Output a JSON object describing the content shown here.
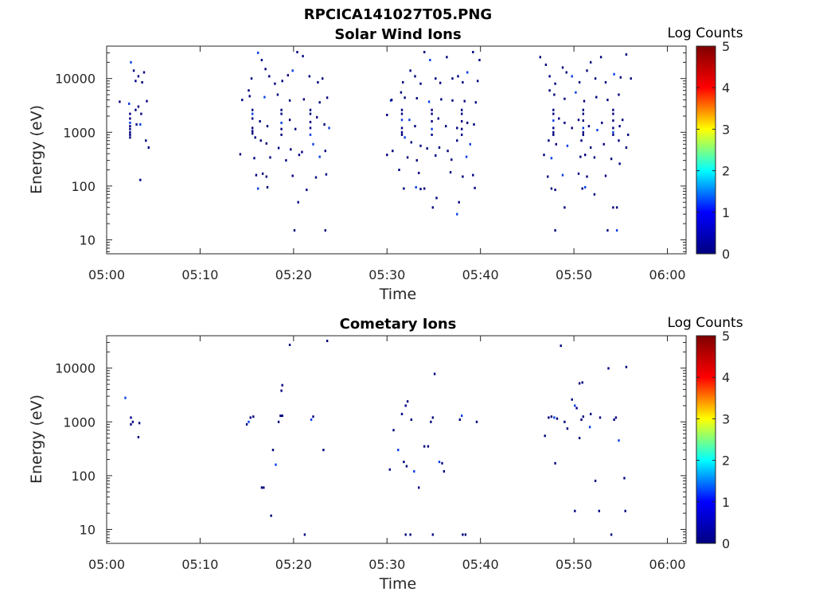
{
  "header": {
    "filename": "RPCICA141027T05.PNG"
  },
  "colors": {
    "mark": "#00007f",
    "mark_bright": "#0b3fe6",
    "axis": "#262626"
  },
  "colorbar": {
    "label": "Log Counts",
    "range": [
      0,
      5
    ],
    "ticks": [
      "0",
      "1",
      "2",
      "3",
      "4",
      "5"
    ],
    "colormap": "jet",
    "stops": [
      "#00007f",
      "#0000ff",
      "#00ffff",
      "#ffff00",
      "#ff0000",
      "#7f0000"
    ]
  },
  "chart_data": [
    {
      "type": "heatmap",
      "title": "Solar Wind Ions",
      "xlabel": "Time",
      "ylabel": "Energy (eV)",
      "x_unit": "minutes after 05:00",
      "xlim": [
        0,
        62
      ],
      "xticks": [
        "05:00",
        "05:10",
        "05:20",
        "05:30",
        "05:40",
        "05:50",
        "06:00"
      ],
      "y_scale": "log",
      "ylim": [
        5.5,
        40000
      ],
      "yticks": [
        "10",
        "100",
        "1000",
        "10000"
      ],
      "grid": false,
      "color_range": [
        0,
        5
      ],
      "points": [
        [
          2.6,
          20000
        ],
        [
          2.9,
          14000
        ],
        [
          3.1,
          9000
        ],
        [
          3.4,
          11000
        ],
        [
          3.8,
          8500
        ],
        [
          4.0,
          13000
        ],
        [
          1.4,
          3700
        ],
        [
          2.4,
          3400
        ],
        [
          3.1,
          2600
        ],
        [
          3.4,
          3000
        ],
        [
          3.7,
          2200
        ],
        [
          4.3,
          3800
        ],
        [
          2.5,
          2200
        ],
        [
          2.5,
          1800
        ],
        [
          2.5,
          1500
        ],
        [
          2.5,
          1300
        ],
        [
          2.5,
          1150
        ],
        [
          2.5,
          1000
        ],
        [
          2.5,
          900
        ],
        [
          2.5,
          800
        ],
        [
          3.2,
          1400
        ],
        [
          3.6,
          1400
        ],
        [
          4.2,
          700
        ],
        [
          4.5,
          520
        ],
        [
          3.6,
          130
        ],
        [
          14.5,
          4000
        ],
        [
          15.2,
          6000
        ],
        [
          15.5,
          10000
        ],
        [
          16.2,
          30000
        ],
        [
          16.6,
          22000
        ],
        [
          17.0,
          15000
        ],
        [
          17.4,
          11000
        ],
        [
          18.0,
          8000
        ],
        [
          18.8,
          9000
        ],
        [
          19.4,
          11500
        ],
        [
          19.9,
          14000
        ],
        [
          20.4,
          31000
        ],
        [
          21.0,
          26000
        ],
        [
          21.7,
          11000
        ],
        [
          22.6,
          8500
        ],
        [
          23.1,
          10000
        ],
        [
          15.3,
          4700
        ],
        [
          16.9,
          4500
        ],
        [
          18.3,
          5000
        ],
        [
          19.6,
          3900
        ],
        [
          21.1,
          4100
        ],
        [
          22.8,
          3600
        ],
        [
          23.6,
          4400
        ],
        [
          15.6,
          2600
        ],
        [
          15.6,
          2200
        ],
        [
          15.6,
          1800
        ],
        [
          15.6,
          1200
        ],
        [
          15.6,
          1050
        ],
        [
          15.6,
          950
        ],
        [
          18.7,
          2600
        ],
        [
          18.7,
          2200
        ],
        [
          18.7,
          1500
        ],
        [
          18.7,
          1150
        ],
        [
          18.7,
          900
        ],
        [
          21.8,
          2600
        ],
        [
          21.8,
          2200
        ],
        [
          21.8,
          1550
        ],
        [
          21.8,
          1200
        ],
        [
          21.8,
          900
        ],
        [
          16.4,
          1600
        ],
        [
          17.2,
          1300
        ],
        [
          19.6,
          1700
        ],
        [
          20.2,
          1150
        ],
        [
          22.5,
          1900
        ],
        [
          23.3,
          1400
        ],
        [
          23.8,
          1200
        ],
        [
          15.9,
          800
        ],
        [
          16.5,
          700
        ],
        [
          17.1,
          620
        ],
        [
          18.4,
          510
        ],
        [
          19.7,
          480
        ],
        [
          20.9,
          430
        ],
        [
          22.1,
          600
        ],
        [
          23.4,
          450
        ],
        [
          14.3,
          390
        ],
        [
          15.8,
          330
        ],
        [
          17.5,
          340
        ],
        [
          19.2,
          300
        ],
        [
          20.6,
          380
        ],
        [
          22.8,
          350
        ],
        [
          16.0,
          160
        ],
        [
          16.7,
          170
        ],
        [
          17.1,
          150
        ],
        [
          19.9,
          155
        ],
        [
          22.4,
          145
        ],
        [
          23.5,
          165
        ],
        [
          16.2,
          90
        ],
        [
          17.2,
          95
        ],
        [
          21.4,
          85
        ],
        [
          20.5,
          50
        ],
        [
          20.1,
          15
        ],
        [
          23.4,
          15
        ],
        [
          30.0,
          2100
        ],
        [
          30.4,
          3900
        ],
        [
          31.5,
          5500
        ],
        [
          31.7,
          8500
        ],
        [
          32.5,
          14000
        ],
        [
          33.0,
          11000
        ],
        [
          33.6,
          8000
        ],
        [
          34.0,
          31000
        ],
        [
          34.6,
          22000
        ],
        [
          35.2,
          10000
        ],
        [
          35.7,
          8300
        ],
        [
          36.4,
          25000
        ],
        [
          37.0,
          10000
        ],
        [
          37.6,
          11000
        ],
        [
          38.1,
          8500
        ],
        [
          38.6,
          13000
        ],
        [
          39.2,
          31000
        ],
        [
          39.7,
          9000
        ],
        [
          39.9,
          22000
        ],
        [
          30.5,
          4000
        ],
        [
          31.9,
          4400
        ],
        [
          33.2,
          4300
        ],
        [
          34.5,
          3700
        ],
        [
          35.8,
          4100
        ],
        [
          37.0,
          3900
        ],
        [
          38.3,
          3800
        ],
        [
          39.5,
          3600
        ],
        [
          31.6,
          2600
        ],
        [
          31.6,
          2200
        ],
        [
          31.6,
          1700
        ],
        [
          31.6,
          1200
        ],
        [
          31.6,
          1000
        ],
        [
          31.6,
          900
        ],
        [
          34.8,
          2600
        ],
        [
          34.8,
          2200
        ],
        [
          34.8,
          1600
        ],
        [
          34.8,
          1150
        ],
        [
          34.8,
          900
        ],
        [
          38.0,
          2600
        ],
        [
          38.0,
          2200
        ],
        [
          38.0,
          1600
        ],
        [
          38.0,
          1150
        ],
        [
          38.0,
          900
        ],
        [
          32.4,
          1700
        ],
        [
          33.0,
          1300
        ],
        [
          35.5,
          1800
        ],
        [
          36.3,
          1300
        ],
        [
          37.5,
          1200
        ],
        [
          38.6,
          1500
        ],
        [
          39.3,
          1400
        ],
        [
          31.9,
          800
        ],
        [
          32.6,
          650
        ],
        [
          33.6,
          560
        ],
        [
          34.3,
          500
        ],
        [
          35.6,
          520
        ],
        [
          36.5,
          450
        ],
        [
          37.5,
          700
        ],
        [
          38.9,
          600
        ],
        [
          30.0,
          380
        ],
        [
          30.6,
          450
        ],
        [
          32.2,
          340
        ],
        [
          33.2,
          300
        ],
        [
          35.2,
          370
        ],
        [
          36.9,
          310
        ],
        [
          38.5,
          350
        ],
        [
          31.3,
          200
        ],
        [
          33.4,
          175
        ],
        [
          36.8,
          180
        ],
        [
          38.1,
          150
        ],
        [
          39.2,
          160
        ],
        [
          31.8,
          90
        ],
        [
          33.1,
          95
        ],
        [
          33.6,
          88
        ],
        [
          39.4,
          92
        ],
        [
          34.0,
          90
        ],
        [
          35.3,
          60
        ],
        [
          34.9,
          40
        ],
        [
          37.7,
          50
        ],
        [
          37.5,
          30
        ],
        [
          46.4,
          25000
        ],
        [
          47.0,
          18000
        ],
        [
          47.4,
          11000
        ],
        [
          48.0,
          8000
        ],
        [
          48.8,
          16000
        ],
        [
          49.2,
          13000
        ],
        [
          49.8,
          11000
        ],
        [
          50.6,
          8500
        ],
        [
          51.4,
          14000
        ],
        [
          51.8,
          20000
        ],
        [
          52.3,
          10000
        ],
        [
          52.9,
          25000
        ],
        [
          53.4,
          8500
        ],
        [
          54.3,
          12000
        ],
        [
          55.0,
          10500
        ],
        [
          55.6,
          28000
        ],
        [
          56.1,
          10000
        ],
        [
          47.4,
          6000
        ],
        [
          47.9,
          5000
        ],
        [
          49.0,
          4200
        ],
        [
          50.2,
          5500
        ],
        [
          51.1,
          3800
        ],
        [
          52.4,
          4500
        ],
        [
          53.6,
          4000
        ],
        [
          54.8,
          5000
        ],
        [
          47.8,
          2600
        ],
        [
          47.8,
          2200
        ],
        [
          47.8,
          1650
        ],
        [
          47.8,
          1200
        ],
        [
          47.8,
          1000
        ],
        [
          47.8,
          900
        ],
        [
          51.0,
          2600
        ],
        [
          51.0,
          2200
        ],
        [
          51.0,
          1650
        ],
        [
          51.0,
          1200
        ],
        [
          51.0,
          1000
        ],
        [
          51.0,
          900
        ],
        [
          54.2,
          2600
        ],
        [
          54.2,
          2200
        ],
        [
          54.2,
          1650
        ],
        [
          54.2,
          1200
        ],
        [
          54.2,
          1000
        ],
        [
          54.2,
          900
        ],
        [
          48.4,
          1800
        ],
        [
          49.0,
          1500
        ],
        [
          49.8,
          1200
        ],
        [
          50.5,
          1700
        ],
        [
          51.6,
          1300
        ],
        [
          52.5,
          1100
        ],
        [
          53.0,
          1500
        ],
        [
          54.9,
          1300
        ],
        [
          55.2,
          1700
        ],
        [
          55.8,
          900
        ],
        [
          47.3,
          700
        ],
        [
          48.1,
          600
        ],
        [
          49.3,
          560
        ],
        [
          50.8,
          700
        ],
        [
          51.8,
          520
        ],
        [
          53.2,
          600
        ],
        [
          54.8,
          700
        ],
        [
          55.6,
          520
        ],
        [
          46.8,
          380
        ],
        [
          47.6,
          330
        ],
        [
          50.7,
          350
        ],
        [
          51.2,
          380
        ],
        [
          52.2,
          340
        ],
        [
          54.0,
          320
        ],
        [
          54.9,
          260
        ],
        [
          47.2,
          150
        ],
        [
          48.8,
          160
        ],
        [
          50.5,
          170
        ],
        [
          51.4,
          150
        ],
        [
          53.4,
          155
        ],
        [
          47.6,
          90
        ],
        [
          48.0,
          85
        ],
        [
          50.9,
          90
        ],
        [
          51.2,
          95
        ],
        [
          52.2,
          70
        ],
        [
          49.0,
          40
        ],
        [
          54.2,
          40
        ],
        [
          54.6,
          40
        ],
        [
          48.0,
          15
        ],
        [
          53.6,
          15
        ],
        [
          54.6,
          15
        ]
      ]
    },
    {
      "type": "heatmap",
      "title": "Cometary Ions",
      "xlabel": "Time",
      "ylabel": "Energy (eV)",
      "x_unit": "minutes after 05:00",
      "xlim": [
        0,
        62
      ],
      "xticks": [
        "05:00",
        "05:10",
        "05:20",
        "05:30",
        "05:40",
        "05:50",
        "06:00"
      ],
      "y_scale": "log",
      "ylim": [
        5.5,
        40000
      ],
      "yticks": [
        "10",
        "100",
        "1000",
        "10000"
      ],
      "grid": false,
      "color_range": [
        0,
        5
      ],
      "points": [
        [
          2.0,
          2800
        ],
        [
          2.6,
          1200
        ],
        [
          2.8,
          1000
        ],
        [
          2.6,
          900
        ],
        [
          3.5,
          950
        ],
        [
          3.4,
          520
        ],
        [
          15.0,
          900
        ],
        [
          15.2,
          1000
        ],
        [
          15.4,
          1200
        ],
        [
          15.7,
          1250
        ],
        [
          16.6,
          60
        ],
        [
          16.8,
          60
        ],
        [
          17.6,
          18
        ],
        [
          17.8,
          300
        ],
        [
          18.1,
          160
        ],
        [
          18.4,
          1000
        ],
        [
          18.6,
          1300
        ],
        [
          18.8,
          1300
        ],
        [
          18.7,
          3800
        ],
        [
          18.8,
          4800
        ],
        [
          19.6,
          27000
        ],
        [
          21.9,
          1100
        ],
        [
          22.1,
          1250
        ],
        [
          23.2,
          300
        ],
        [
          23.6,
          32000
        ],
        [
          21.2,
          8
        ],
        [
          30.3,
          130
        ],
        [
          30.7,
          700
        ],
        [
          31.2,
          300
        ],
        [
          31.6,
          1400
        ],
        [
          32.0,
          2000
        ],
        [
          32.2,
          2400
        ],
        [
          31.8,
          180
        ],
        [
          32.1,
          150
        ],
        [
          32.6,
          1100
        ],
        [
          32.9,
          120
        ],
        [
          33.4,
          60
        ],
        [
          34.0,
          350
        ],
        [
          34.4,
          350
        ],
        [
          34.7,
          1000
        ],
        [
          34.9,
          1200
        ],
        [
          35.1,
          7800
        ],
        [
          35.6,
          180
        ],
        [
          35.9,
          170
        ],
        [
          36.1,
          120
        ],
        [
          32.0,
          8
        ],
        [
          32.5,
          8
        ],
        [
          34.9,
          8
        ],
        [
          37.8,
          1100
        ],
        [
          38.0,
          1300
        ],
        [
          38.1,
          8
        ],
        [
          38.4,
          8
        ],
        [
          39.6,
          1000
        ],
        [
          46.9,
          550
        ],
        [
          47.3,
          1200
        ],
        [
          47.6,
          1250
        ],
        [
          47.9,
          1200
        ],
        [
          48.2,
          1150
        ],
        [
          48.0,
          170
        ],
        [
          48.6,
          26000
        ],
        [
          49.0,
          1000
        ],
        [
          49.3,
          750
        ],
        [
          49.8,
          2600
        ],
        [
          50.1,
          2000
        ],
        [
          50.3,
          1800
        ],
        [
          50.6,
          5200
        ],
        [
          50.9,
          5400
        ],
        [
          50.6,
          500
        ],
        [
          50.8,
          1100
        ],
        [
          51.0,
          1250
        ],
        [
          51.7,
          800
        ],
        [
          51.8,
          1400
        ],
        [
          52.3,
          80
        ],
        [
          52.8,
          1200
        ],
        [
          53.7,
          9900
        ],
        [
          54.3,
          1100
        ],
        [
          54.5,
          1200
        ],
        [
          54.8,
          450
        ],
        [
          55.6,
          10500
        ],
        [
          55.4,
          90
        ],
        [
          50.1,
          22
        ],
        [
          52.7,
          22
        ],
        [
          55.5,
          22
        ],
        [
          54.0,
          8
        ]
      ]
    }
  ]
}
